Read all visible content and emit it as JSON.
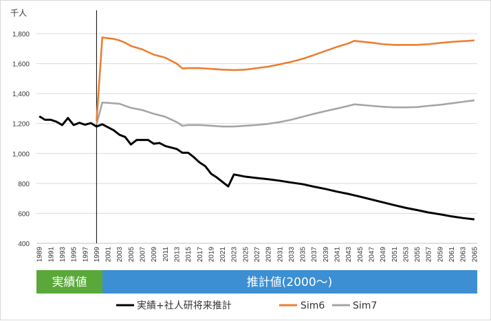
{
  "chart_data": {
    "type": "line",
    "unit_label": "千人",
    "ylim": [
      400,
      1800
    ],
    "yticks": [
      400,
      600,
      800,
      1000,
      1200,
      1400,
      1600,
      1800
    ],
    "ytick_labels": [
      "400",
      "600",
      "800",
      "1,000",
      "1,200",
      "1,400",
      "1,600",
      "1,800"
    ],
    "x_start": 1989,
    "x_end": 2065,
    "xtick_labels": [
      "1989",
      "1991",
      "1993",
      "1995",
      "1997",
      "1999",
      "2001",
      "2003",
      "2005",
      "2007",
      "2009",
      "2011",
      "2013",
      "2015",
      "2017",
      "2019",
      "2021",
      "2023",
      "2025",
      "2027",
      "2029",
      "2031",
      "2033",
      "2035",
      "2037",
      "2039",
      "2041",
      "2043",
      "2045",
      "2047",
      "2049",
      "2051",
      "2053",
      "2055",
      "2057",
      "2059",
      "2061",
      "2063",
      "2065"
    ],
    "grid": "horizontal",
    "divider_x": 1999,
    "bands": [
      {
        "label": "実績値",
        "color": "#5aa83a"
      },
      {
        "label": "推計値(2000～)",
        "color": "#3c8fd2"
      }
    ],
    "legend_position": "bottom",
    "series": [
      {
        "name": "実績+社人研将来推計",
        "color": "#000000",
        "points": [
          [
            1989,
            1248
          ],
          [
            1990,
            1225
          ],
          [
            1991,
            1225
          ],
          [
            1992,
            1212
          ],
          [
            1993,
            1190
          ],
          [
            1994,
            1237
          ],
          [
            1995,
            1190
          ],
          [
            1996,
            1205
          ],
          [
            1997,
            1192
          ],
          [
            1998,
            1203
          ],
          [
            1999,
            1180
          ],
          [
            2000,
            1195
          ],
          [
            2001,
            1175
          ],
          [
            2002,
            1155
          ],
          [
            2003,
            1125
          ],
          [
            2004,
            1110
          ],
          [
            2005,
            1060
          ],
          [
            2006,
            1090
          ],
          [
            2007,
            1090
          ],
          [
            2008,
            1090
          ],
          [
            2009,
            1065
          ],
          [
            2010,
            1070
          ],
          [
            2011,
            1050
          ],
          [
            2012,
            1040
          ],
          [
            2013,
            1030
          ],
          [
            2014,
            1005
          ],
          [
            2015,
            1005
          ],
          [
            2016,
            975
          ],
          [
            2017,
            940
          ],
          [
            2018,
            915
          ],
          [
            2019,
            865
          ],
          [
            2020,
            840
          ],
          [
            2021,
            810
          ],
          [
            2022,
            780
          ],
          [
            2023,
            860
          ],
          [
            2025,
            845
          ],
          [
            2027,
            836
          ],
          [
            2029,
            828
          ],
          [
            2031,
            818
          ],
          [
            2033,
            806
          ],
          [
            2035,
            795
          ],
          [
            2037,
            778
          ],
          [
            2039,
            763
          ],
          [
            2041,
            745
          ],
          [
            2043,
            730
          ],
          [
            2045,
            712
          ],
          [
            2047,
            693
          ],
          [
            2049,
            674
          ],
          [
            2051,
            655
          ],
          [
            2053,
            637
          ],
          [
            2055,
            622
          ],
          [
            2057,
            606
          ],
          [
            2059,
            594
          ],
          [
            2061,
            580
          ],
          [
            2063,
            569
          ],
          [
            2065,
            560
          ]
        ]
      },
      {
        "name": "Sim6",
        "color": "#ed7d31",
        "points": [
          [
            1999,
            1215
          ],
          [
            2000,
            1775
          ],
          [
            2001,
            1770
          ],
          [
            2002,
            1765
          ],
          [
            2003,
            1755
          ],
          [
            2004,
            1740
          ],
          [
            2005,
            1718
          ],
          [
            2007,
            1695
          ],
          [
            2009,
            1660
          ],
          [
            2011,
            1640
          ],
          [
            2013,
            1600
          ],
          [
            2014,
            1568
          ],
          [
            2015,
            1570
          ],
          [
            2017,
            1570
          ],
          [
            2019,
            1565
          ],
          [
            2021,
            1560
          ],
          [
            2023,
            1557
          ],
          [
            2025,
            1560
          ],
          [
            2027,
            1570
          ],
          [
            2029,
            1580
          ],
          [
            2031,
            1595
          ],
          [
            2033,
            1612
          ],
          [
            2035,
            1632
          ],
          [
            2037,
            1658
          ],
          [
            2039,
            1685
          ],
          [
            2041,
            1712
          ],
          [
            2043,
            1735
          ],
          [
            2044,
            1752
          ],
          [
            2045,
            1748
          ],
          [
            2047,
            1740
          ],
          [
            2049,
            1730
          ],
          [
            2051,
            1725
          ],
          [
            2053,
            1725
          ],
          [
            2055,
            1725
          ],
          [
            2057,
            1730
          ],
          [
            2059,
            1738
          ],
          [
            2061,
            1745
          ],
          [
            2063,
            1750
          ],
          [
            2065,
            1755
          ]
        ]
      },
      {
        "name": "Sim7",
        "color": "#a5a5a5",
        "points": [
          [
            1999,
            1195
          ],
          [
            2000,
            1340
          ],
          [
            2001,
            1338
          ],
          [
            2003,
            1332
          ],
          [
            2005,
            1305
          ],
          [
            2007,
            1290
          ],
          [
            2009,
            1265
          ],
          [
            2011,
            1245
          ],
          [
            2013,
            1210
          ],
          [
            2014,
            1185
          ],
          [
            2015,
            1190
          ],
          [
            2017,
            1190
          ],
          [
            2019,
            1185
          ],
          [
            2021,
            1180
          ],
          [
            2023,
            1180
          ],
          [
            2025,
            1185
          ],
          [
            2027,
            1190
          ],
          [
            2029,
            1198
          ],
          [
            2031,
            1210
          ],
          [
            2033,
            1225
          ],
          [
            2035,
            1245
          ],
          [
            2037,
            1265
          ],
          [
            2039,
            1283
          ],
          [
            2041,
            1300
          ],
          [
            2043,
            1318
          ],
          [
            2044,
            1328
          ],
          [
            2045,
            1325
          ],
          [
            2047,
            1318
          ],
          [
            2049,
            1312
          ],
          [
            2051,
            1308
          ],
          [
            2053,
            1308
          ],
          [
            2055,
            1310
          ],
          [
            2057,
            1318
          ],
          [
            2059,
            1325
          ],
          [
            2061,
            1335
          ],
          [
            2063,
            1345
          ],
          [
            2065,
            1355
          ]
        ]
      }
    ]
  }
}
